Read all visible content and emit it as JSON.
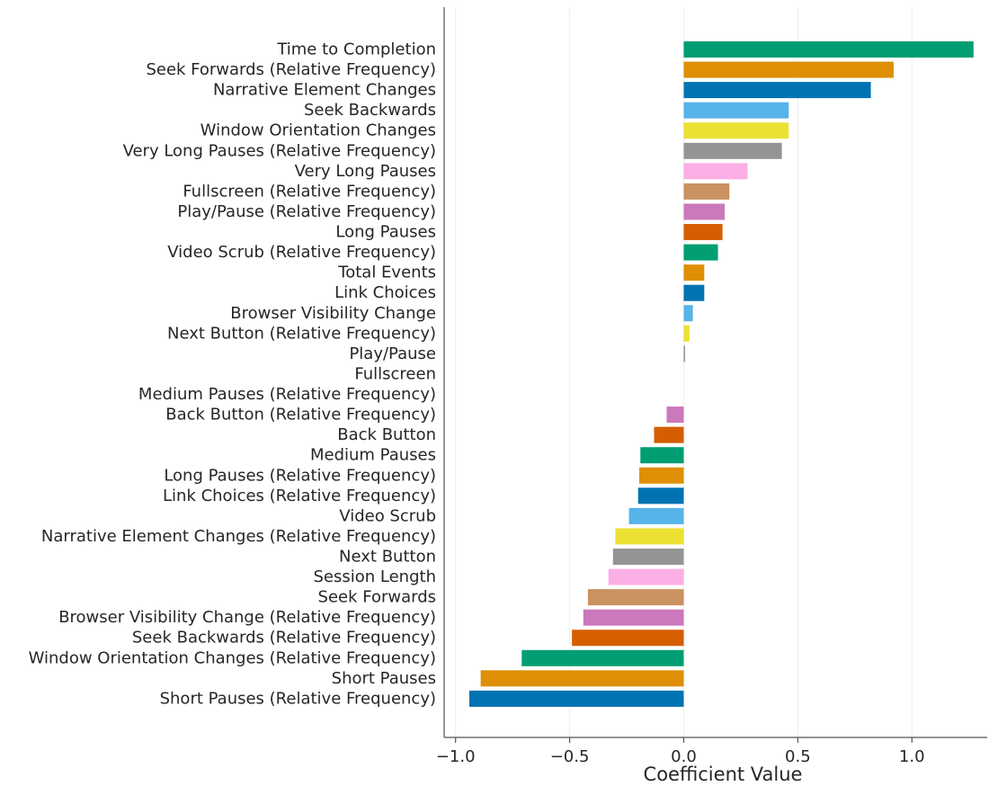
{
  "chart_data": {
    "type": "bar",
    "orientation": "horizontal",
    "xlabel": "Coefficient Value",
    "ylabel": "",
    "xlim": [
      -1.05,
      1.33
    ],
    "xticks": [
      -1.0,
      -0.5,
      0.0,
      0.5,
      1.0
    ],
    "xtick_labels": [
      "−1.0",
      "−0.5",
      "0.0",
      "0.5",
      "1.0"
    ],
    "grid": true,
    "palette": [
      "#029e73",
      "#de8f05",
      "#0173b2",
      "#56b4e9",
      "#ece133",
      "#949494",
      "#fbafe4",
      "#ca9161",
      "#cc78bc",
      "#d55e00"
    ],
    "categories": [
      "Time to Completion",
      "Seek Forwards (Relative Frequency)",
      "Narrative Element Changes",
      "Seek Backwards",
      "Window Orientation Changes",
      "Very Long Pauses (Relative Frequency)",
      "Very Long Pauses",
      "Fullscreen (Relative Frequency)",
      "Play/Pause (Relative Frequency)",
      "Long Pauses",
      "Video Scrub (Relative Frequency)",
      "Total Events",
      "Link Choices",
      "Browser Visibility Change",
      "Next Button (Relative Frequency)",
      "Play/Pause",
      "Fullscreen",
      "Medium Pauses (Relative Frequency)",
      "Back Button (Relative Frequency)",
      "Back Button",
      "Medium Pauses",
      "Long Pauses (Relative Frequency)",
      "Link Choices (Relative Frequency)",
      "Video Scrub",
      "Narrative Element Changes (Relative Frequency)",
      "Next Button",
      "Session Length",
      "Seek Forwards",
      "Browser Visibility Change (Relative Frequency)",
      "Seek Backwards (Relative Frequency)",
      "Window Orientation Changes (Relative Frequency)",
      "Short Pauses",
      "Short Pauses (Relative Frequency)"
    ],
    "values": [
      1.27,
      0.92,
      0.82,
      0.46,
      0.46,
      0.43,
      0.28,
      0.2,
      0.18,
      0.17,
      0.15,
      0.09,
      0.09,
      0.04,
      0.025,
      0.005,
      0.0,
      0.0,
      -0.075,
      -0.13,
      -0.19,
      -0.195,
      -0.2,
      -0.24,
      -0.3,
      -0.31,
      -0.33,
      -0.42,
      -0.44,
      -0.49,
      -0.71,
      -0.89,
      -0.94
    ]
  }
}
